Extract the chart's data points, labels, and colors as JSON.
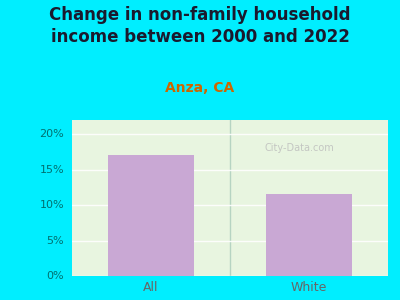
{
  "title": "Change in non-family household\nincome between 2000 and 2022",
  "subtitle": "Anza, CA",
  "categories": [
    "All",
    "White"
  ],
  "values": [
    17.0,
    11.5
  ],
  "bar_color": "#c9a8d4",
  "title_color": "#1a1a2e",
  "subtitle_color": "#cc6600",
  "tick_color_outer": "#007070",
  "tick_color_x": "#666666",
  "background_outer": "#00eeff",
  "background_inner": "#e8f5e0",
  "ylim": [
    0,
    22
  ],
  "yticks": [
    0,
    5,
    10,
    15,
    20
  ],
  "ytick_labels": [
    "0%",
    "5%",
    "10%",
    "15%",
    "20%"
  ],
  "watermark": "City-Data.com",
  "title_fontsize": 12,
  "subtitle_fontsize": 10
}
